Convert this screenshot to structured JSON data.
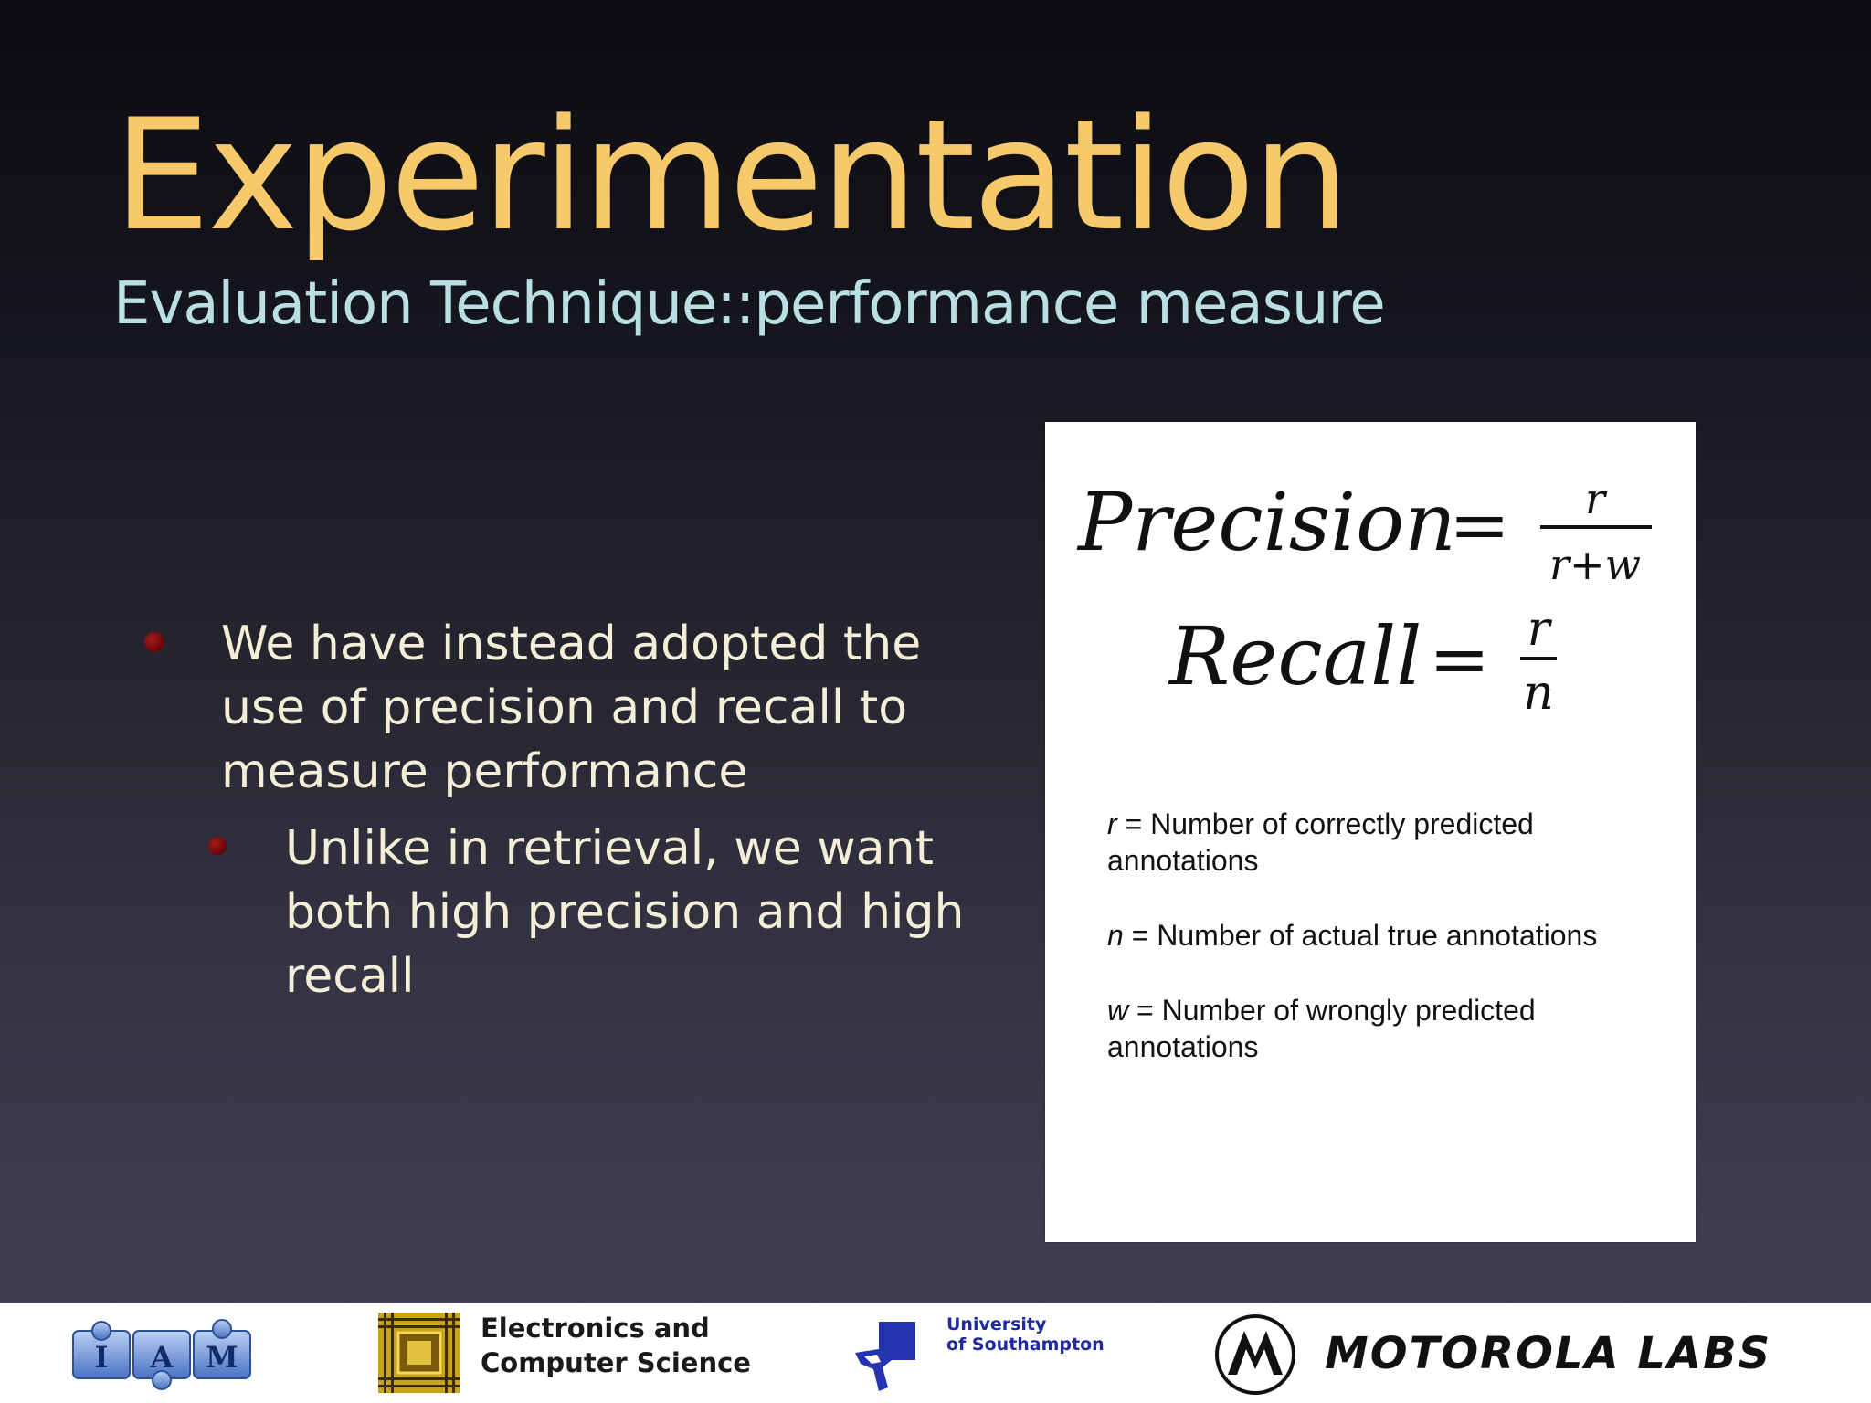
{
  "slide": {
    "title": "Experimentation",
    "subtitle": "Evaluation Technique::performance measure",
    "bullets": [
      {
        "text": "We have instead adopted the use of precision and recall to measure performance",
        "level": 1
      },
      {
        "text": "Unlike in retrieval, we want both high precision and high recall",
        "level": 2
      }
    ]
  },
  "formula_box": {
    "precision": {
      "lhs": "Precision",
      "equals": "=",
      "numerator": "r",
      "denominator": "r+w"
    },
    "recall": {
      "lhs": "Recall",
      "equals": "=",
      "numerator": "r",
      "denominator": "n"
    },
    "definitions": [
      {
        "var": "r",
        "text": " = Number of correctly predicted annotations"
      },
      {
        "var": "n",
        "text": " = Number of actual true annotations"
      },
      {
        "var": "w",
        "text": " = Number of wrongly predicted annotations"
      }
    ]
  },
  "footer": {
    "iam_letters": [
      "I",
      "A",
      "M"
    ],
    "ecs_line1": "Electronics and",
    "ecs_line2": "Computer Science",
    "soton_line1": "University",
    "soton_line2": "of Southampton",
    "motorola_text": "MOTOROLA LABS"
  },
  "colors": {
    "title": "#f7c96b",
    "subtitle": "#b9dfe2",
    "body_text": "#f4eed6",
    "bullet": "#7a0808",
    "soton_blue": "#1f2aa0"
  }
}
